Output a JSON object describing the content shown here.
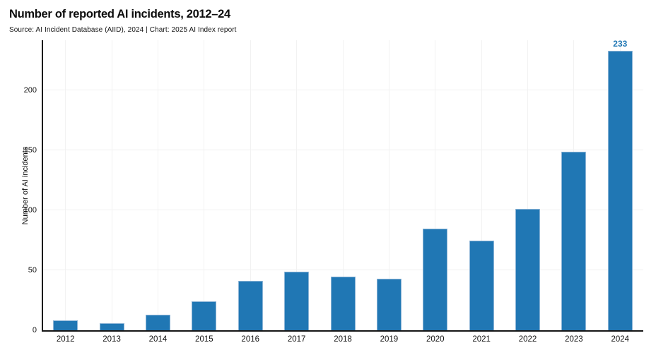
{
  "header": {
    "title": "Number of reported AI incidents, 2012–24",
    "subtitle": "Source: AI Incident Database (AIID), 2024 | Chart: 2025 AI Index report"
  },
  "chart_data": {
    "type": "bar",
    "title": "Number of reported AI incidents, 2012–24",
    "xlabel": "",
    "ylabel": "Number of AI incidents",
    "categories": [
      "2012",
      "2013",
      "2014",
      "2015",
      "2016",
      "2017",
      "2018",
      "2019",
      "2020",
      "2021",
      "2022",
      "2023",
      "2024"
    ],
    "values": [
      8,
      6,
      13,
      24,
      41,
      49,
      45,
      43,
      85,
      75,
      101,
      149,
      233
    ],
    "ylim": [
      0,
      242
    ],
    "yticks": [
      0,
      50,
      100,
      150,
      200
    ],
    "grid": true,
    "legend": "none",
    "bar_color": "#2077b4",
    "bar_edge_color": "#8cb4d6",
    "gridline_color": "#f0f0f0",
    "axis_color": "#161616",
    "annotation": {
      "category": "2024",
      "text": "233",
      "color": "#1f77b4"
    }
  }
}
